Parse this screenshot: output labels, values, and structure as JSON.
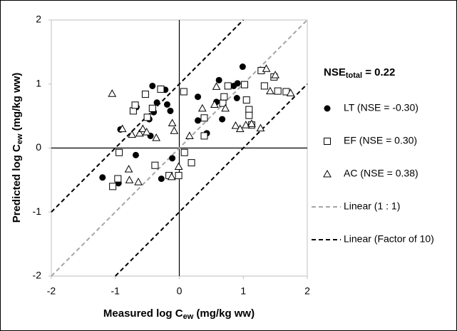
{
  "chart_data": {
    "type": "scatter",
    "annotation": {
      "text": "NSE",
      "subscript": "total",
      "suffix": " = 0.22"
    },
    "xlabel": {
      "text": "Measured log C",
      "subscript": "ew",
      "suffix": " (mg/kg ww)"
    },
    "ylabel": {
      "text": "Predicted log C",
      "subscript": "ew",
      "suffix": " (mg/kg ww)"
    },
    "xlim": [
      -2,
      2
    ],
    "ylim": [
      -2,
      2
    ],
    "xticks": [
      -2,
      -1,
      0,
      1,
      2
    ],
    "yticks": [
      -2,
      -1,
      0,
      1,
      2
    ],
    "series": [
      {
        "name": "LT (NSE = -0.30)",
        "marker": "circle",
        "color": "#000000",
        "x": [
          -1.2,
          -0.95,
          -0.92,
          -0.68,
          -0.67,
          -0.47,
          -0.42,
          -0.4,
          -0.35,
          -0.45,
          -0.28,
          -0.22,
          -0.19,
          -0.14,
          -0.11,
          0.29,
          0.29,
          0.62,
          0.43,
          0.67,
          0.58,
          0.85,
          0.91,
          0.9,
          0.99
        ],
        "y": [
          -0.46,
          -0.55,
          0.29,
          -0.11,
          0.64,
          0.45,
          0.97,
          0.56,
          0.71,
          0.19,
          -0.48,
          0.91,
          0.68,
          0.58,
          -0.16,
          0.43,
          0.8,
          1.06,
          0.23,
          0.45,
          0.72,
          0.97,
          1.01,
          0.78,
          1.27
        ]
      },
      {
        "name": "EF (NSE = 0.30)",
        "marker": "square",
        "color": "#000000",
        "x": [
          -0.96,
          -1.04,
          -0.94,
          -0.72,
          -0.69,
          -0.53,
          -0.5,
          -0.42,
          -0.38,
          -0.29,
          -0.16,
          -0.01,
          0.08,
          0.19,
          0.07,
          0.39,
          0.39,
          0.68,
          0.7,
          0.76,
          1.05,
          1.09,
          1.09,
          1.13,
          1.02,
          1.28,
          1.33,
          1.48,
          1.54,
          1.67
        ],
        "y": [
          -0.48,
          -0.6,
          -0.07,
          0.58,
          0.67,
          0.84,
          0.48,
          0.62,
          -0.27,
          0.92,
          -0.43,
          -0.43,
          -0.07,
          -0.23,
          0.88,
          0.47,
          0.19,
          0.7,
          0.8,
          0.97,
          0.75,
          0.6,
          0.51,
          0.36,
          0.99,
          1.21,
          0.97,
          1.11,
          0.89,
          0.88
        ]
      },
      {
        "name": "AC (NSE = 0.38)",
        "marker": "triangle",
        "color": "#000000",
        "x": [
          -1.05,
          -0.89,
          -0.79,
          -0.78,
          -0.64,
          -0.74,
          -0.62,
          -0.57,
          -0.51,
          -0.36,
          -0.11,
          -0.08,
          -0.12,
          -0.01,
          0.16,
          0.36,
          0.55,
          0.58,
          0.72,
          0.88,
          0.95,
          1.04,
          1.13,
          1.27,
          1.36,
          1.42,
          1.5,
          1.74
        ],
        "y": [
          0.85,
          0.3,
          -0.33,
          -0.5,
          -0.53,
          0.21,
          0.23,
          0.3,
          0.25,
          0.16,
          0.39,
          0.27,
          -0.45,
          -0.29,
          0.19,
          0.62,
          0.68,
          0.96,
          0.62,
          0.35,
          0.3,
          0.36,
          0.38,
          0.31,
          1.24,
          0.89,
          1.14,
          0.86
        ]
      }
    ],
    "lines": [
      {
        "name": "Linear (1 : 1)",
        "color": "#a6a6a6",
        "x": [
          -2,
          2
        ],
        "y": [
          -2,
          2
        ]
      },
      {
        "name": "Linear (Factor of 10)",
        "color": "#000000",
        "x": [
          -2,
          1,
          null,
          -1,
          2
        ],
        "y": [
          -1,
          2,
          null,
          -2,
          1
        ]
      }
    ]
  }
}
